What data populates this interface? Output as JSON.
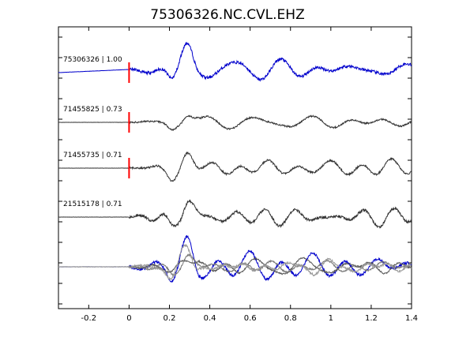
{
  "chart_data": {
    "type": "line",
    "title": "75306326.NC.CVL.EHZ",
    "xlabel": "",
    "ylabel": "",
    "xlim": [
      -0.35,
      1.4
    ],
    "x_ticks": [
      -0.2,
      0,
      0.2,
      0.4,
      0.6,
      0.8,
      1,
      1.2,
      1.4
    ],
    "x_tick_labels": [
      "-0.2",
      "0",
      "0.2",
      "0.4",
      "0.6",
      "0.8",
      "1",
      "1.2",
      "1.4"
    ],
    "grid": false,
    "pick_time": 0,
    "traces": [
      {
        "label": "75306326 | 1.00",
        "color": "#0000cc",
        "lane": 0
      },
      {
        "label": "71455825 | 0.73",
        "color": "#333333",
        "lane": 1
      },
      {
        "label": "71455735 | 0.71",
        "color": "#333333",
        "lane": 2
      },
      {
        "label": "21515178 | 0.71",
        "color": "#333333",
        "lane": 3
      }
    ],
    "overlay_colors": [
      "#0000cc",
      "#555555",
      "#777777",
      "#999999"
    ],
    "colors": {
      "pick": "#ff0000",
      "axis": "#000000"
    }
  }
}
